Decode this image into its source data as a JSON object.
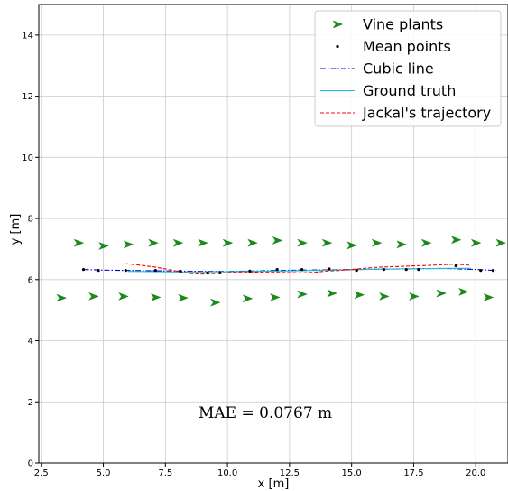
{
  "chart_data": {
    "type": "scatter",
    "xlabel": "x [m]",
    "ylabel": "y [m]",
    "xlim": [
      2.4,
      21.3
    ],
    "ylim": [
      0,
      15
    ],
    "xticks": [
      2.5,
      5.0,
      7.5,
      10.0,
      12.5,
      15.0,
      17.5,
      20.0
    ],
    "xtick_labels": [
      "2.5",
      "5.0",
      "7.5",
      "10.0",
      "12.5",
      "15.0",
      "17.5",
      "20.0"
    ],
    "yticks": [
      0,
      2,
      4,
      6,
      8,
      10,
      12,
      14
    ],
    "ytick_labels": [
      "0",
      "2",
      "4",
      "6",
      "8",
      "10",
      "12",
      "14"
    ],
    "grid": true,
    "legend_position": "top-right",
    "annotation": "MAE = 0.0767 m",
    "colors": {
      "vine": "#1a8a1a",
      "mean": "#000000",
      "cubic": "#0000cc",
      "ground": "#17becf",
      "jackal": "#ff0000"
    },
    "series": [
      {
        "name": "Vine plants",
        "style": "marker",
        "points": [
          [
            4.0,
            7.2
          ],
          [
            5.0,
            7.1
          ],
          [
            6.0,
            7.15
          ],
          [
            7.0,
            7.2
          ],
          [
            8.0,
            7.2
          ],
          [
            9.0,
            7.2
          ],
          [
            10.0,
            7.2
          ],
          [
            11.0,
            7.2
          ],
          [
            12.0,
            7.28
          ],
          [
            13.0,
            7.2
          ],
          [
            14.0,
            7.2
          ],
          [
            15.0,
            7.12
          ],
          [
            16.0,
            7.2
          ],
          [
            17.0,
            7.15
          ],
          [
            18.0,
            7.2
          ],
          [
            19.2,
            7.3
          ],
          [
            20.0,
            7.2
          ],
          [
            21.0,
            7.2
          ],
          [
            3.3,
            5.4
          ],
          [
            4.6,
            5.45
          ],
          [
            5.8,
            5.45
          ],
          [
            7.1,
            5.42
          ],
          [
            8.2,
            5.4
          ],
          [
            9.5,
            5.25
          ],
          [
            10.8,
            5.38
          ],
          [
            11.9,
            5.42
          ],
          [
            13.0,
            5.52
          ],
          [
            14.2,
            5.55
          ],
          [
            15.3,
            5.5
          ],
          [
            16.3,
            5.45
          ],
          [
            17.5,
            5.45
          ],
          [
            18.6,
            5.55
          ],
          [
            19.5,
            5.6
          ],
          [
            20.5,
            5.42
          ]
        ]
      },
      {
        "name": "Mean points",
        "style": "dot",
        "points": [
          [
            4.2,
            6.33
          ],
          [
            4.8,
            6.3
          ],
          [
            5.9,
            6.3
          ],
          [
            7.1,
            6.3
          ],
          [
            8.1,
            6.28
          ],
          [
            9.2,
            6.22
          ],
          [
            9.7,
            6.22
          ],
          [
            10.9,
            6.28
          ],
          [
            12.0,
            6.33
          ],
          [
            13.0,
            6.33
          ],
          [
            14.1,
            6.35
          ],
          [
            15.2,
            6.3
          ],
          [
            16.3,
            6.33
          ],
          [
            17.2,
            6.33
          ],
          [
            17.7,
            6.33
          ],
          [
            19.2,
            6.45
          ],
          [
            20.2,
            6.3
          ],
          [
            20.7,
            6.3
          ]
        ]
      },
      {
        "name": "Cubic line",
        "style": "dashdot",
        "points": [
          [
            4.2,
            6.33
          ],
          [
            5.0,
            6.31
          ],
          [
            6.0,
            6.3
          ],
          [
            7.0,
            6.29
          ],
          [
            8.0,
            6.28
          ],
          [
            9.0,
            6.27
          ],
          [
            10.0,
            6.27
          ],
          [
            11.0,
            6.28
          ],
          [
            12.0,
            6.3
          ],
          [
            13.0,
            6.31
          ],
          [
            14.0,
            6.32
          ],
          [
            15.0,
            6.33
          ],
          [
            16.0,
            6.34
          ],
          [
            17.0,
            6.35
          ],
          [
            18.0,
            6.36
          ],
          [
            19.0,
            6.36
          ],
          [
            20.0,
            6.33
          ],
          [
            20.8,
            6.3
          ]
        ]
      },
      {
        "name": "Ground truth",
        "style": "solid",
        "points": [
          [
            6.0,
            6.27
          ],
          [
            7.0,
            6.26
          ],
          [
            8.0,
            6.25
          ],
          [
            9.0,
            6.25
          ],
          [
            10.0,
            6.26
          ],
          [
            11.0,
            6.27
          ],
          [
            12.0,
            6.28
          ],
          [
            13.0,
            6.29
          ],
          [
            14.0,
            6.31
          ],
          [
            15.0,
            6.32
          ],
          [
            16.0,
            6.34
          ],
          [
            17.0,
            6.35
          ],
          [
            18.0,
            6.36
          ],
          [
            19.0,
            6.37
          ],
          [
            19.8,
            6.37
          ]
        ]
      },
      {
        "name": "Jackal's trajectory",
        "style": "dashed",
        "points": [
          [
            5.9,
            6.52
          ],
          [
            6.5,
            6.47
          ],
          [
            7.0,
            6.42
          ],
          [
            7.5,
            6.35
          ],
          [
            8.0,
            6.27
          ],
          [
            8.5,
            6.2
          ],
          [
            9.0,
            6.18
          ],
          [
            9.5,
            6.2
          ],
          [
            10.0,
            6.23
          ],
          [
            10.5,
            6.25
          ],
          [
            11.0,
            6.25
          ],
          [
            11.5,
            6.24
          ],
          [
            12.0,
            6.24
          ],
          [
            12.5,
            6.23
          ],
          [
            13.0,
            6.22
          ],
          [
            13.5,
            6.24
          ],
          [
            14.0,
            6.28
          ],
          [
            14.5,
            6.3
          ],
          [
            15.0,
            6.33
          ],
          [
            15.5,
            6.37
          ],
          [
            16.0,
            6.4
          ],
          [
            16.5,
            6.42
          ],
          [
            17.0,
            6.43
          ],
          [
            17.5,
            6.45
          ],
          [
            18.0,
            6.46
          ],
          [
            18.5,
            6.48
          ],
          [
            19.0,
            6.5
          ],
          [
            19.3,
            6.5
          ],
          [
            19.8,
            6.47
          ]
        ]
      }
    ]
  }
}
